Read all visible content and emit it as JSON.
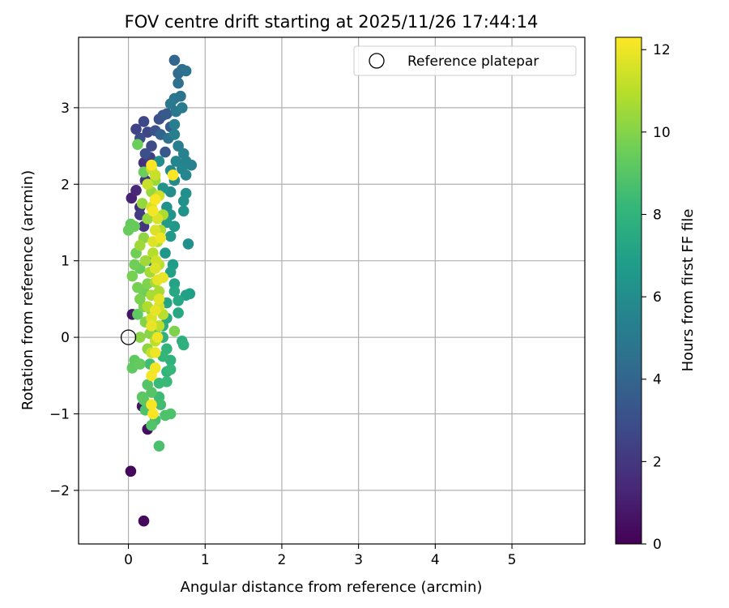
{
  "chart_data": {
    "type": "scatter",
    "title": "FOV centre drift starting at 2025/11/26 17:44:14",
    "xlabel": "Angular distance from reference (arcmin)",
    "ylabel": "Rotation from reference (arcmin)",
    "xlim": [
      -0.65,
      5.95
    ],
    "ylim": [
      -2.7,
      3.92
    ],
    "xticks": [
      0,
      1,
      2,
      3,
      4,
      5
    ],
    "xtick_labels": [
      "0",
      "1",
      "2",
      "3",
      "4",
      "5"
    ],
    "yticks": [
      -2,
      -1,
      0,
      1,
      2,
      3
    ],
    "ytick_labels": [
      "−2",
      "−1",
      "0",
      "1",
      "2",
      "3"
    ],
    "grid": true,
    "legend": {
      "position": "top-right",
      "entries": [
        {
          "label": "Reference platepar",
          "marker": "open-circle"
        }
      ]
    },
    "reference_point": {
      "x": 0.0,
      "y": 0.0
    },
    "colorbar": {
      "label": "Hours from first FF file",
      "colormap": "viridis",
      "range": [
        0,
        12.3
      ],
      "ticks": [
        0,
        2,
        4,
        6,
        8,
        10,
        12
      ],
      "tick_labels": [
        "0",
        "2",
        "4",
        "6",
        "8",
        "10",
        "12"
      ]
    },
    "colors": [
      "#440154",
      "#482878",
      "#3e4989",
      "#31688e",
      "#26828e",
      "#1f9e89",
      "#35b779",
      "#6ece58",
      "#b5de2b",
      "#fde725"
    ],
    "series_note_columns": [
      "x",
      "y",
      "hours"
    ],
    "points": [
      [
        0.03,
        -1.75,
        0.2
      ],
      [
        0.2,
        -2.4,
        0.3
      ],
      [
        0.25,
        -1.2,
        0.5
      ],
      [
        0.18,
        -0.9,
        0.6
      ],
      [
        0.05,
        0.3,
        0.7
      ],
      [
        0.04,
        1.82,
        1.2
      ],
      [
        0.1,
        1.92,
        1.4
      ],
      [
        0.2,
        2.28,
        1.8
      ],
      [
        0.15,
        1.6,
        2.2
      ],
      [
        0.1,
        2.72,
        2.5
      ],
      [
        0.2,
        2.82,
        2.7
      ],
      [
        0.25,
        2.68,
        2.6
      ],
      [
        0.15,
        2.6,
        2.9
      ],
      [
        0.3,
        2.5,
        2.8
      ],
      [
        0.22,
        2.4,
        3.0
      ],
      [
        0.4,
        2.85,
        3.1
      ],
      [
        0.45,
        2.9,
        3.3
      ],
      [
        0.5,
        2.92,
        3.5
      ],
      [
        0.55,
        2.75,
        3.6
      ],
      [
        0.48,
        2.42,
        3.4
      ],
      [
        0.6,
        3.62,
        4.0
      ],
      [
        0.65,
        3.45,
        4.2
      ],
      [
        0.7,
        3.5,
        4.4
      ],
      [
        0.75,
        3.48,
        4.6
      ],
      [
        0.65,
        3.32,
        4.5
      ],
      [
        0.68,
        3.15,
        4.7
      ],
      [
        0.6,
        3.12,
        4.8
      ],
      [
        0.55,
        3.05,
        5.0
      ],
      [
        0.62,
        2.95,
        4.9
      ],
      [
        0.7,
        3.0,
        5.1
      ],
      [
        0.6,
        2.78,
        5.2
      ],
      [
        0.6,
        2.65,
        5.3
      ],
      [
        0.72,
        2.4,
        5.4
      ],
      [
        0.75,
        2.3,
        5.5
      ],
      [
        0.82,
        2.25,
        5.4
      ],
      [
        0.7,
        2.2,
        5.6
      ],
      [
        0.75,
        2.12,
        5.7
      ],
      [
        0.55,
        2.18,
        5.8
      ],
      [
        0.6,
        2.05,
        5.9
      ],
      [
        0.55,
        1.9,
        6.0
      ],
      [
        0.75,
        1.88,
        6.1
      ],
      [
        0.72,
        1.78,
        6.2
      ],
      [
        0.72,
        1.65,
        6.3
      ],
      [
        0.78,
        1.22,
        6.2
      ],
      [
        0.55,
        1.6,
        6.4
      ],
      [
        0.6,
        1.45,
        6.5
      ],
      [
        0.55,
        1.32,
        6.6
      ],
      [
        0.5,
        1.5,
        6.7
      ],
      [
        0.58,
        0.95,
        6.8
      ],
      [
        0.8,
        0.57,
        6.9
      ],
      [
        0.75,
        0.55,
        7.0
      ],
      [
        0.6,
        0.7,
        7.1
      ],
      [
        0.5,
        0.45,
        7.2
      ],
      [
        0.65,
        0.48,
        7.3
      ],
      [
        0.65,
        0.32,
        7.4
      ],
      [
        0.5,
        0.25,
        7.5
      ],
      [
        0.45,
        0.15,
        7.6
      ],
      [
        0.7,
        -0.05,
        7.7
      ],
      [
        0.72,
        -0.1,
        7.8
      ],
      [
        0.55,
        -0.3,
        7.9
      ],
      [
        0.5,
        -0.45,
        8.0
      ],
      [
        0.45,
        -0.25,
        8.1
      ],
      [
        0.55,
        -0.42,
        8.2
      ],
      [
        0.5,
        -0.58,
        8.3
      ],
      [
        0.4,
        -0.78,
        8.4
      ],
      [
        0.42,
        -0.88,
        8.5
      ],
      [
        0.35,
        -1.08,
        8.6
      ],
      [
        0.4,
        -1.42,
        8.7
      ],
      [
        0.55,
        -1.0,
        8.8
      ],
      [
        0.48,
        -1.02,
        8.8
      ],
      [
        0.3,
        -1.15,
        8.9
      ],
      [
        0.25,
        -0.62,
        9.0
      ],
      [
        0.3,
        -0.72,
        9.0
      ],
      [
        0.18,
        -0.78,
        9.1
      ],
      [
        0.2,
        -0.82,
        9.1
      ],
      [
        0.05,
        -0.4,
        9.2
      ],
      [
        0.08,
        -0.3,
        9.2
      ],
      [
        0.15,
        -0.35,
        9.3
      ],
      [
        0.03,
        1.48,
        9.3
      ],
      [
        0.08,
        1.45,
        9.4
      ],
      [
        0.0,
        1.4,
        9.4
      ],
      [
        0.12,
        2.52,
        9.5
      ],
      [
        0.2,
        2.16,
        9.5
      ],
      [
        0.1,
        1.1,
        9.6
      ],
      [
        0.08,
        0.95,
        9.6
      ],
      [
        0.05,
        0.8,
        9.7
      ],
      [
        0.12,
        0.65,
        9.7
      ],
      [
        0.15,
        0.5,
        9.8
      ],
      [
        0.2,
        0.4,
        9.8
      ],
      [
        0.6,
        0.08,
        9.9
      ],
      [
        0.3,
        0.35,
        10.0
      ],
      [
        0.22,
        0.2,
        10.0
      ],
      [
        0.28,
        0.05,
        10.1
      ],
      [
        0.15,
        0.0,
        10.1
      ],
      [
        0.25,
        -0.15,
        10.2
      ],
      [
        0.2,
        1.3,
        10.2
      ],
      [
        0.25,
        1.55,
        10.3
      ],
      [
        0.18,
        1.75,
        10.3
      ],
      [
        0.3,
        1.9,
        10.4
      ],
      [
        0.35,
        2.05,
        10.4
      ],
      [
        0.15,
        1.2,
        10.5
      ],
      [
        0.22,
        1.0,
        10.5
      ],
      [
        0.28,
        0.85,
        10.6
      ],
      [
        0.35,
        0.72,
        10.6
      ],
      [
        0.3,
        0.55,
        10.7
      ],
      [
        0.4,
        0.6,
        10.7
      ],
      [
        0.42,
        1.4,
        10.8
      ],
      [
        0.45,
        1.6,
        10.8
      ],
      [
        0.38,
        1.25,
        10.9
      ],
      [
        0.32,
        1.1,
        10.9
      ],
      [
        0.4,
        0.95,
        11.0
      ],
      [
        0.45,
        0.3,
        11.0
      ],
      [
        0.4,
        0.15,
        11.1
      ],
      [
        0.35,
        -0.05,
        11.1
      ],
      [
        0.3,
        -0.2,
        11.2
      ],
      [
        0.3,
        2.2,
        11.2
      ],
      [
        0.35,
        2.12,
        11.3
      ],
      [
        0.25,
        2.0,
        11.3
      ],
      [
        0.4,
        1.85,
        11.4
      ],
      [
        0.3,
        1.7,
        11.5
      ],
      [
        0.38,
        1.55,
        11.6
      ],
      [
        0.35,
        1.4,
        11.6
      ],
      [
        0.32,
        1.25,
        11.7
      ],
      [
        0.35,
        0.9,
        11.7
      ],
      [
        0.38,
        0.75,
        11.8
      ],
      [
        0.4,
        0.5,
        11.8
      ],
      [
        0.35,
        0.35,
        11.9
      ],
      [
        0.3,
        0.15,
        11.9
      ],
      [
        0.38,
        0.0,
        12.0
      ],
      [
        0.35,
        -0.2,
        12.0
      ],
      [
        0.3,
        -0.5,
        12.1
      ],
      [
        0.35,
        -0.4,
        12.1
      ],
      [
        0.3,
        -0.88,
        12.2
      ],
      [
        0.32,
        -1.0,
        12.2
      ],
      [
        0.58,
        2.12,
        12.3
      ],
      [
        0.3,
        2.25,
        12.3
      ],
      [
        0.35,
        1.8,
        12.2
      ],
      [
        0.32,
        1.65,
        12.1
      ],
      [
        0.42,
        1.3,
        12.0
      ],
      [
        0.45,
        0.78,
        11.9
      ],
      [
        0.3,
        0.25,
        11.6
      ],
      [
        0.4,
        0.4,
        11.5
      ],
      [
        0.36,
        1.0,
        11.4
      ],
      [
        0.25,
        0.4,
        10.8
      ],
      [
        0.2,
        0.6,
        9.6
      ],
      [
        0.35,
        0.1,
        9.0
      ],
      [
        0.28,
        -0.35,
        8.5
      ],
      [
        0.4,
        2.3,
        6.0
      ],
      [
        0.5,
        1.7,
        6.2
      ],
      [
        0.45,
        1.95,
        6.3
      ],
      [
        0.62,
        2.3,
        5.6
      ],
      [
        0.65,
        2.5,
        5.2
      ],
      [
        0.52,
        2.6,
        4.6
      ],
      [
        0.42,
        2.65,
        3.9
      ],
      [
        0.35,
        2.7,
        3.2
      ],
      [
        0.28,
        2.35,
        2.4
      ],
      [
        0.22,
        2.05,
        2.0
      ],
      [
        0.15,
        1.7,
        1.6
      ],
      [
        0.2,
        1.45,
        1.9
      ],
      [
        0.3,
        1.0,
        4.4
      ],
      [
        0.48,
        1.1,
        6.5
      ],
      [
        0.55,
        0.85,
        7.0
      ],
      [
        0.6,
        0.6,
        7.4
      ],
      [
        0.4,
        -0.6,
        8.3
      ],
      [
        0.22,
        -0.95,
        8.8
      ],
      [
        0.45,
        0.0,
        7.8
      ],
      [
        0.5,
        -0.15,
        8.0
      ],
      [
        0.15,
        0.9,
        9.4
      ],
      [
        0.12,
        0.3,
        9.2
      ],
      [
        0.25,
        0.7,
        9.9
      ]
    ]
  }
}
